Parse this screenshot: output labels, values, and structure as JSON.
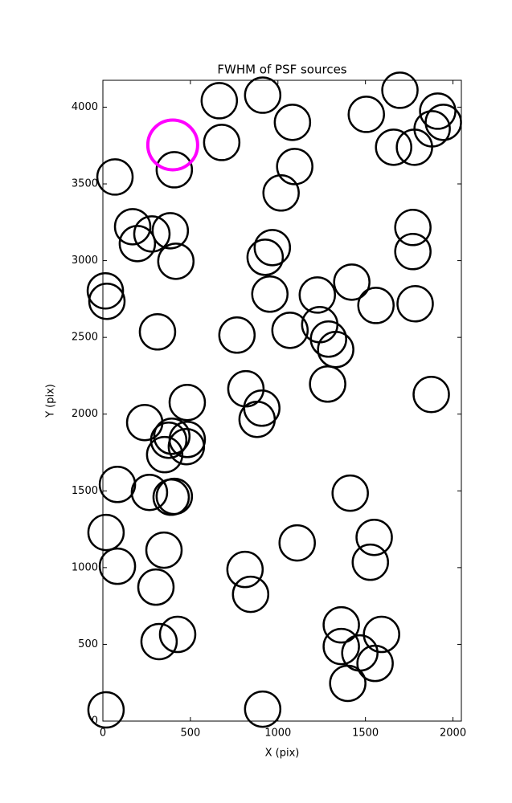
{
  "chart_data": {
    "type": "scatter",
    "title": "FWHM of PSF sources",
    "x_label": "X (pix)",
    "y_label": "Y (pix)",
    "xlim": [
      0,
      2048
    ],
    "ylim": [
      0,
      4175
    ],
    "xticks": [
      0,
      500,
      1000,
      1500,
      2000
    ],
    "yticks": [
      0,
      500,
      1000,
      1500,
      2000,
      2500,
      3000,
      3500,
      4000
    ],
    "series": [
      {
        "color": "#000000",
        "x": [
          69,
          408,
          665,
          679,
          913,
          1083,
          1096,
          1018,
          1505,
          1697,
          1661,
          1780,
          1881,
          1913,
          1945,
          170,
          197,
          280,
          385,
          417,
          968,
          927,
          1771,
          1771,
          14,
          23,
          312,
          954,
          1225,
          1422,
          1560,
          1784,
          766,
          1069,
          1239,
          1289,
          1330,
          1284,
          1876,
          817,
          908,
          881,
          482,
          239,
          394,
          482,
          376,
          477,
          353,
          83,
          266,
          390,
          408,
          1413,
          18,
          83,
          349,
          303,
          1110,
          1550,
          1528,
          812,
          844,
          1362,
          1362,
          1468,
          1592,
          1555,
          1399,
          321,
          427,
          18,
          913
        ],
        "values": [
          3545,
          3592,
          4042,
          3770,
          4078,
          3901,
          3613,
          3441,
          3953,
          4110,
          3739,
          3739,
          3859,
          3974,
          3901,
          3221,
          3111,
          3174,
          3195,
          2996,
          3085,
          3022,
          3216,
          3059,
          2803,
          2735,
          2536,
          2782,
          2776,
          2860,
          2708,
          2719,
          2515,
          2546,
          2583,
          2489,
          2421,
          2196,
          2128,
          2165,
          2039,
          1966,
          2076,
          1945,
          1856,
          1835,
          1830,
          1788,
          1736,
          1542,
          1490,
          1459,
          1464,
          1485,
          1229,
          1009,
          1114,
          873,
          1161,
          1197,
          1035,
          988,
          826,
          627,
          486,
          444,
          565,
          376,
          246,
          518,
          565,
          73,
          78
        ]
      },
      {
        "color": "#ff00ff",
        "x": [
          399
        ],
        "values": [
          3754
        ]
      }
    ]
  }
}
